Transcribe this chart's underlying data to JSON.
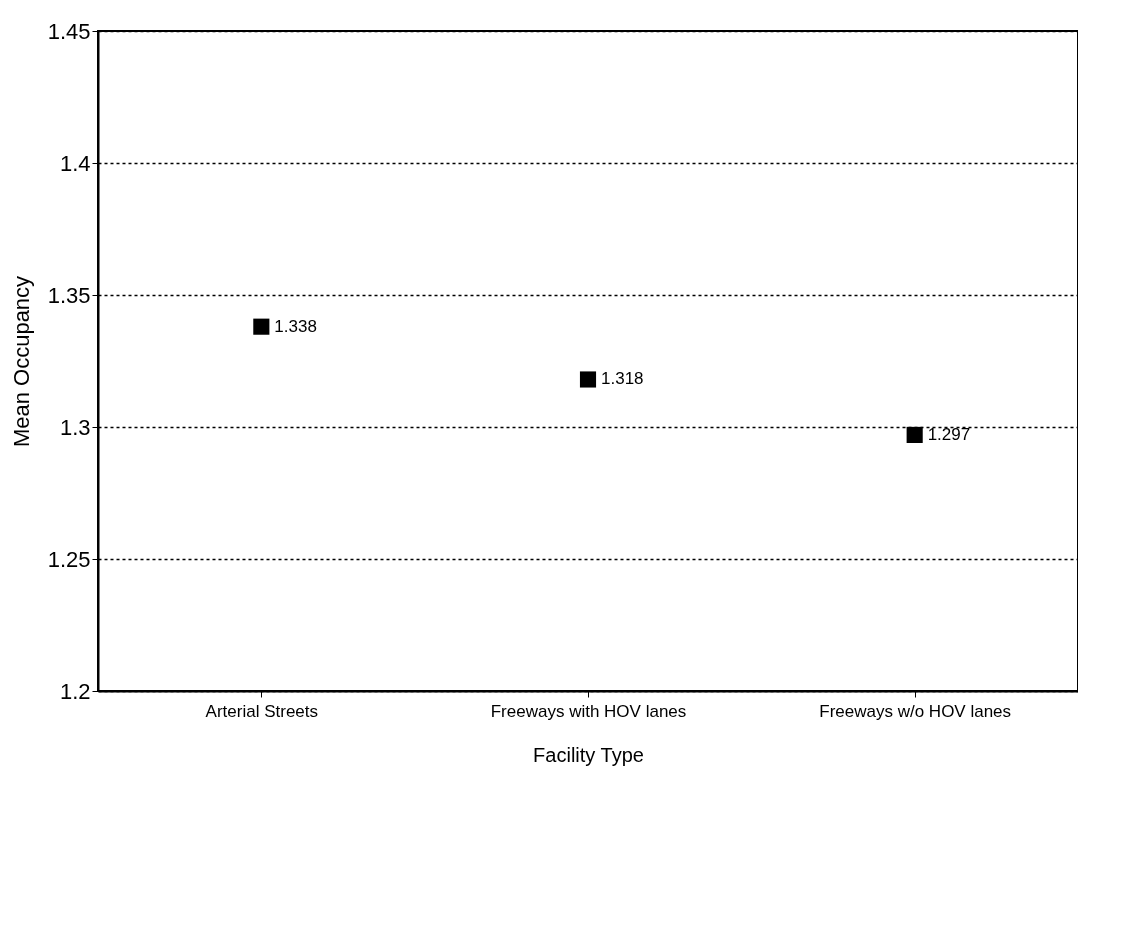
{
  "chart_data": {
    "type": "scatter",
    "xlabel": "Facility Type",
    "ylabel": "Mean Occupancy",
    "categories": [
      "Arterial Streets",
      "Freeways with HOV lanes",
      "Freeways w/o HOV lanes"
    ],
    "series": [
      {
        "color": "#000000",
        "values": [
          1.338,
          1.318,
          1.297
        ]
      }
    ],
    "ylim": [
      1.2,
      1.45
    ],
    "yticks": [
      1.2,
      1.25,
      1.3,
      1.35,
      1.4,
      1.45
    ],
    "grid": "y",
    "marker": "square",
    "data_labels": true
  }
}
